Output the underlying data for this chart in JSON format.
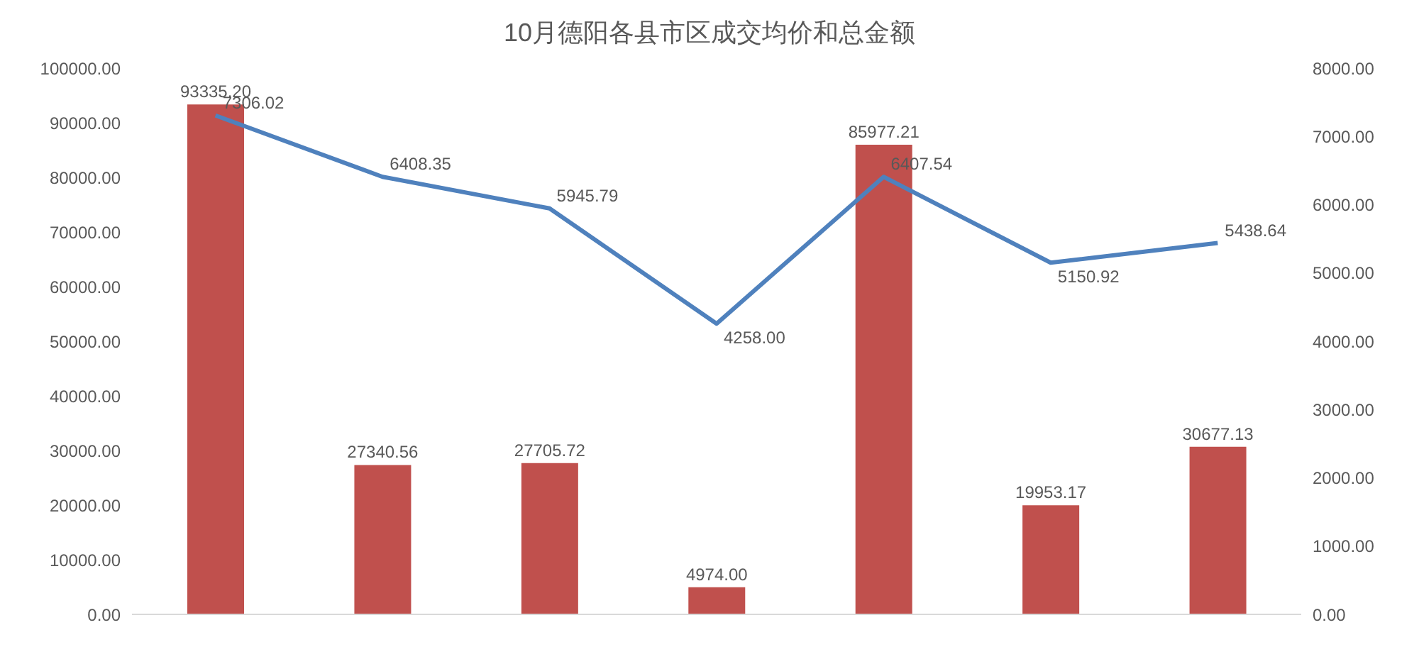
{
  "chart_data": {
    "type": "bar",
    "title": "10月德阳各县市区成交均价和总金额",
    "categories": [
      null,
      null,
      null,
      null,
      null,
      null,
      null
    ],
    "series": [
      {
        "color": "#c0504d",
        "values": [
          93335.2,
          27340.56,
          27705.72,
          4974,
          85977.21,
          19953.17,
          30677.13
        ],
        "value_labels": [
          "93335.20",
          "27340.56",
          "27705.72",
          "4974.00",
          "85977.21",
          "19953.17",
          "30677.13"
        ]
      },
      {
        "type": "line",
        "axis": "y2",
        "color": "#4f81bd",
        "values": [
          7306.02,
          6408.35,
          5945.79,
          4258,
          6407.54,
          5150.92,
          5438.64
        ],
        "value_labels": [
          "7306.02",
          "6408.35",
          "5945.79",
          "4258.00",
          "6407.54",
          "5150.92",
          "5438.64"
        ]
      }
    ],
    "ylim": [
      0,
      100000
    ],
    "yticks": [
      {
        "value": 0,
        "label": "0.00"
      },
      {
        "value": 10000,
        "label": "10000.00"
      },
      {
        "value": 20000,
        "label": "20000.00"
      },
      {
        "value": 30000,
        "label": "30000.00"
      },
      {
        "value": 40000,
        "label": "40000.00"
      },
      {
        "value": 50000,
        "label": "50000.00"
      },
      {
        "value": 60000,
        "label": "60000.00"
      },
      {
        "value": 70000,
        "label": "70000.00"
      },
      {
        "value": 80000,
        "label": "80000.00"
      },
      {
        "value": 90000,
        "label": "90000.00"
      },
      {
        "value": 100000,
        "label": "100000.00"
      }
    ],
    "y2lim": [
      0,
      8000
    ],
    "y2ticks": [
      {
        "value": 0,
        "label": "0.00"
      },
      {
        "value": 1000,
        "label": "1000.00"
      },
      {
        "value": 2000,
        "label": "2000.00"
      },
      {
        "value": 3000,
        "label": "3000.00"
      },
      {
        "value": 4000,
        "label": "4000.00"
      },
      {
        "value": 5000,
        "label": "5000.00"
      },
      {
        "value": 6000,
        "label": "6000.00"
      },
      {
        "value": 7000,
        "label": "7000.00"
      },
      {
        "value": 8000,
        "label": "8000.00"
      }
    ],
    "legend": false,
    "grid": false
  }
}
